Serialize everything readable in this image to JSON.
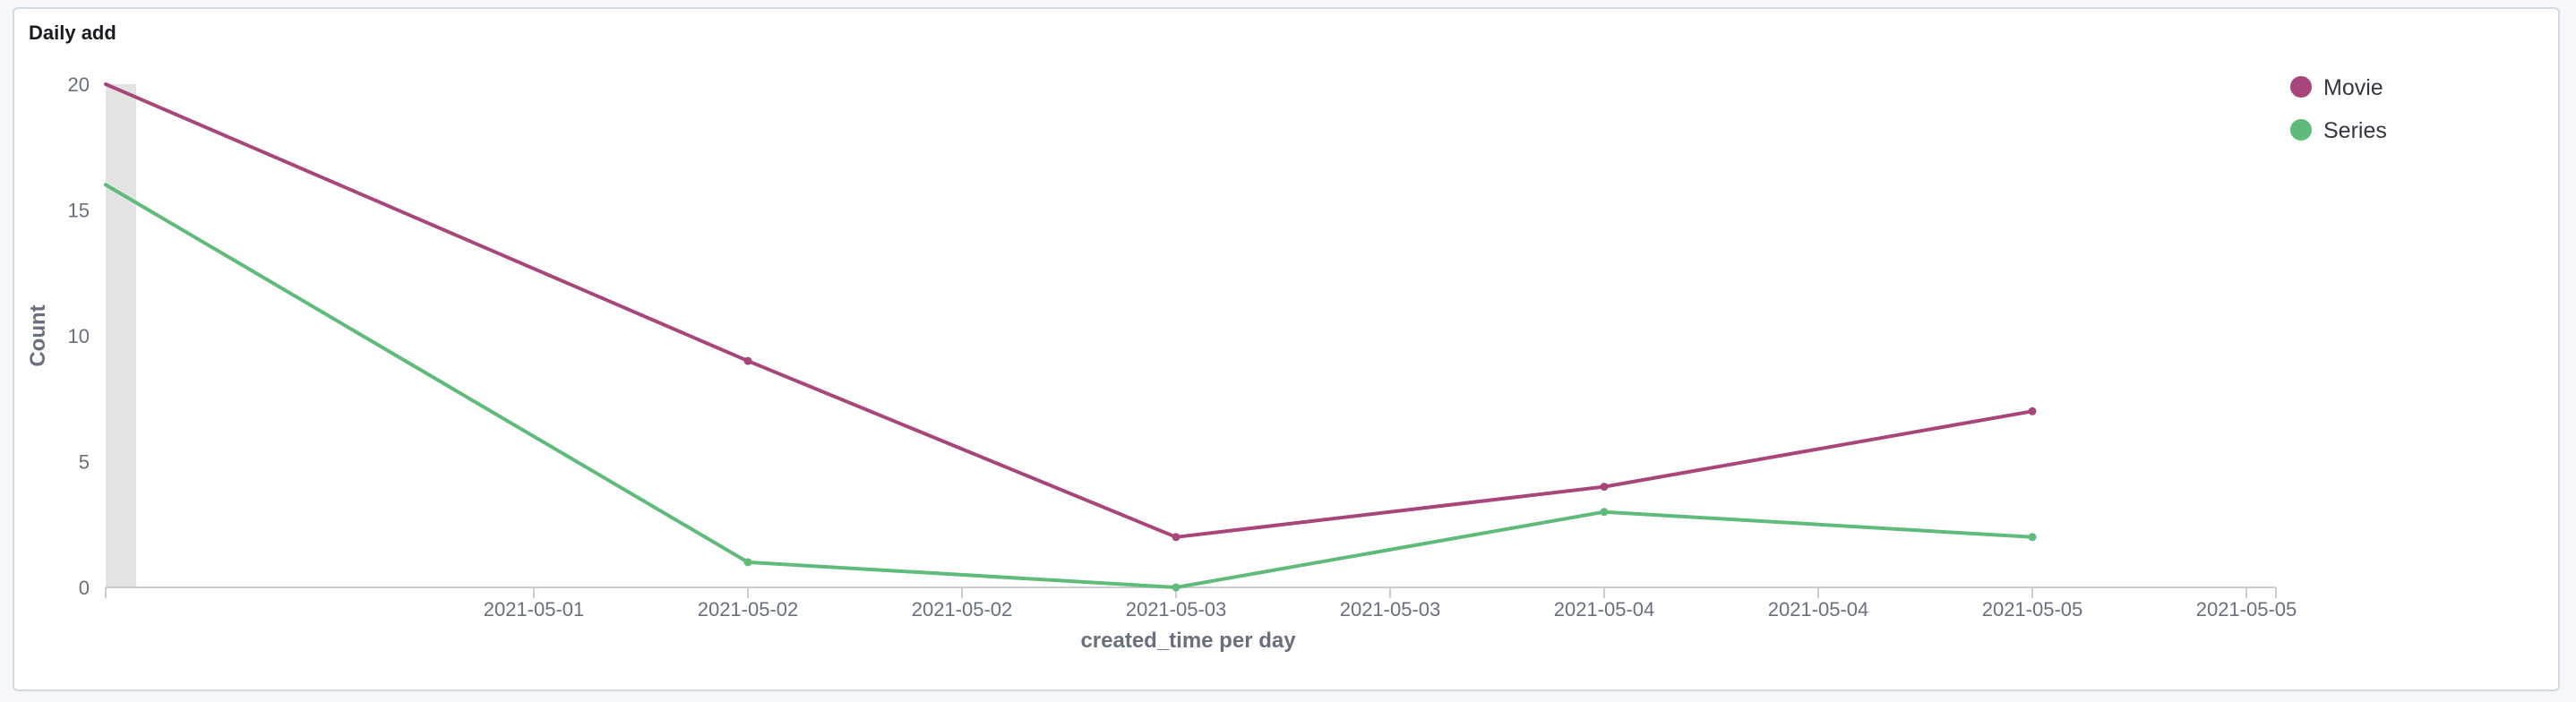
{
  "panel": {
    "title": "Daily add"
  },
  "chart_data": {
    "type": "line",
    "title": "Daily add",
    "xlabel": "created_time per day",
    "ylabel": "Count",
    "x": [
      "2021-04-30",
      "2021-05-01 12:00",
      "2021-05-02 12:00",
      "2021-05-03 12:00",
      "2021-05-04 12:00"
    ],
    "x_tick_labels": [
      "2021-05-01",
      "2021-05-02",
      "2021-05-02",
      "2021-05-03",
      "2021-05-03",
      "2021-05-04",
      "2021-05-04",
      "2021-05-05",
      "2021-05-05"
    ],
    "y_ticks": [
      0,
      5,
      10,
      15,
      20
    ],
    "ylim": [
      0,
      20
    ],
    "series": [
      {
        "name": "Movie",
        "color": "#a8467b",
        "values": [
          20,
          9,
          2,
          4,
          7
        ]
      },
      {
        "name": "Series",
        "color": "#5fbb7a",
        "values": [
          16,
          1,
          0,
          3,
          2
        ]
      }
    ],
    "legend": {
      "position": "top-right"
    },
    "grid": false
  }
}
